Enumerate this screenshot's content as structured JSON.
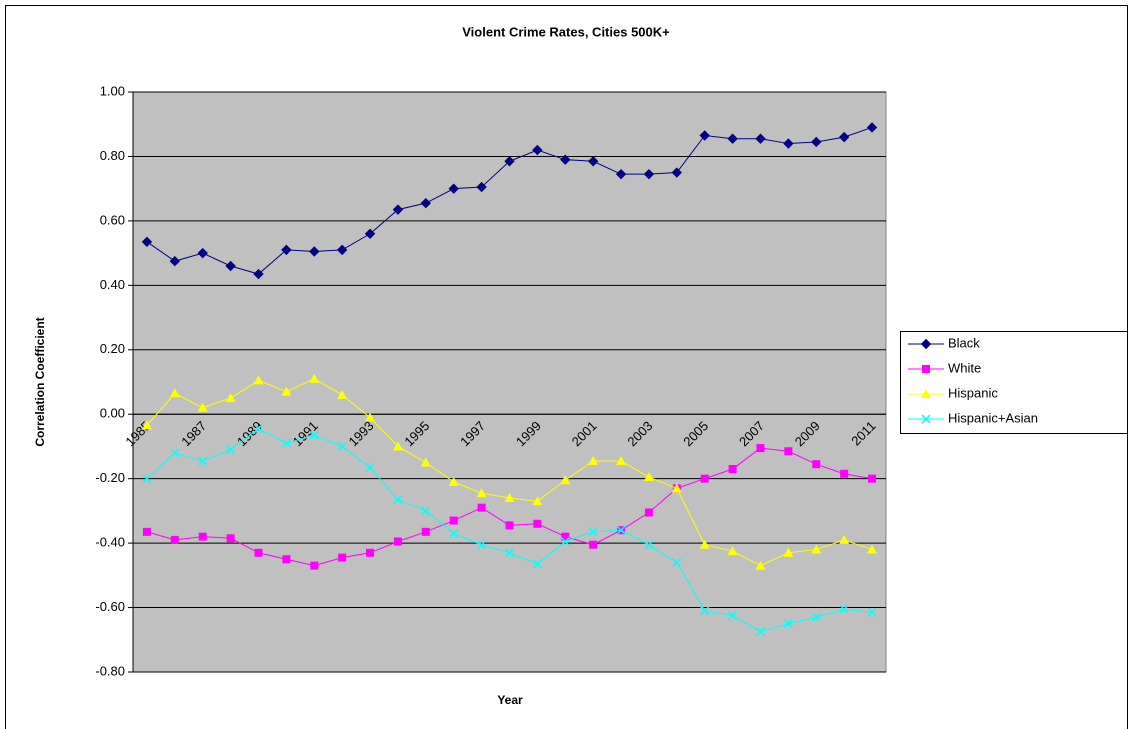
{
  "chart_data": {
    "type": "line",
    "title": "Violent Crime Rates, Cities 500K+",
    "x_label": "Year",
    "y_label": "Correlation Coefficient",
    "categories": [
      "1985",
      null,
      "1987",
      null,
      "1989",
      null,
      "1991",
      null,
      "1993",
      null,
      "1995",
      null,
      "1997",
      null,
      "1999",
      null,
      "2001",
      null,
      "2003",
      null,
      "2005",
      null,
      "2007",
      null,
      "2009",
      null,
      "2011"
    ],
    "series": [
      {
        "name": "Black",
        "color": "#000080",
        "marker": "diamond",
        "values": [
          0.535,
          0.475,
          0.5,
          0.46,
          0.435,
          0.51,
          0.505,
          0.51,
          0.56,
          0.635,
          0.655,
          0.7,
          0.705,
          0.785,
          0.82,
          0.79,
          0.785,
          0.745,
          0.745,
          0.75,
          0.865,
          0.855,
          0.855,
          0.84,
          0.845,
          0.86,
          0.89
        ]
      },
      {
        "name": "White",
        "color": "#ff00ff",
        "marker": "square",
        "values": [
          -0.365,
          -0.39,
          -0.38,
          -0.385,
          -0.43,
          -0.45,
          -0.47,
          -0.445,
          -0.43,
          -0.395,
          -0.365,
          -0.33,
          -0.29,
          -0.345,
          -0.34,
          -0.38,
          -0.405,
          -0.36,
          -0.305,
          -0.23,
          -0.2,
          -0.17,
          -0.105,
          -0.115,
          -0.155,
          -0.185,
          -0.2
        ]
      },
      {
        "name": "Hispanic",
        "color": "#ffff00",
        "marker": "triangle",
        "values": [
          -0.035,
          0.065,
          0.02,
          0.05,
          0.105,
          0.07,
          0.11,
          0.06,
          -0.01,
          -0.1,
          -0.15,
          -0.21,
          -0.245,
          -0.26,
          -0.27,
          -0.205,
          -0.145,
          -0.145,
          -0.195,
          -0.23,
          -0.405,
          -0.425,
          -0.47,
          -0.43,
          -0.42,
          -0.39,
          -0.42
        ]
      },
      {
        "name": "Hispanic+Asian",
        "color": "#00ffff",
        "marker": "x",
        "values": [
          -0.2,
          -0.12,
          -0.145,
          -0.11,
          -0.045,
          -0.09,
          -0.065,
          -0.1,
          -0.165,
          -0.265,
          -0.3,
          -0.37,
          -0.405,
          -0.43,
          -0.465,
          -0.395,
          -0.365,
          -0.36,
          -0.405,
          -0.46,
          -0.61,
          -0.625,
          -0.675,
          -0.65,
          -0.63,
          -0.605,
          -0.615
        ]
      }
    ],
    "ylim": [
      -0.8,
      1.0
    ],
    "yticks": [
      {
        "value": -0.8,
        "label": "-0.80"
      },
      {
        "value": -0.6,
        "label": "-0.60"
      },
      {
        "value": -0.4,
        "label": "-0.40"
      },
      {
        "value": -0.2,
        "label": "-0.20"
      },
      {
        "value": 0,
        "label": "0.00"
      },
      {
        "value": 0.2,
        "label": "0.20"
      },
      {
        "value": 0.4,
        "label": "0.40"
      },
      {
        "value": 0.6,
        "label": "0.60"
      },
      {
        "value": 0.8,
        "label": "0.80"
      },
      {
        "value": 1.0,
        "label": "1.00"
      }
    ],
    "grid": true,
    "plot_background": "#c0c0c0",
    "legend": "right"
  }
}
